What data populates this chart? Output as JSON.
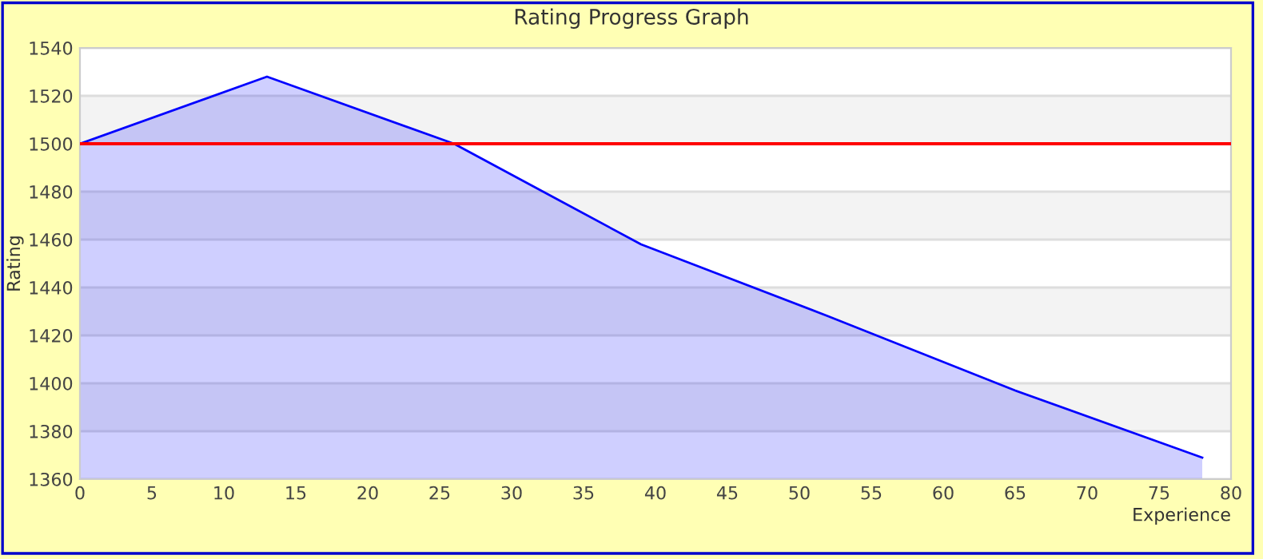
{
  "chart_data": {
    "type": "area",
    "title": "Rating Progress Graph",
    "xlabel": "Experience",
    "ylabel": "Rating",
    "x": [
      0,
      13,
      26,
      39,
      52,
      65,
      78
    ],
    "series": [
      {
        "color": "#0000ff",
        "values": [
          1500,
          1528,
          1500,
          1458,
          1428,
          1397,
          1369
        ]
      }
    ],
    "xlim": [
      0,
      80
    ],
    "xticks": [
      0,
      5,
      10,
      15,
      20,
      25,
      30,
      35,
      40,
      45,
      50,
      55,
      60,
      65,
      70,
      75,
      80
    ],
    "ylim": [
      1360,
      1540
    ],
    "yticks": [
      1360,
      1380,
      1400,
      1420,
      1440,
      1460,
      1480,
      1500,
      1520,
      1540
    ],
    "ref_lines": [
      {
        "axis": "y",
        "value": 1500,
        "color": "#ff0000"
      }
    ],
    "grid": "y",
    "legend": false
  }
}
